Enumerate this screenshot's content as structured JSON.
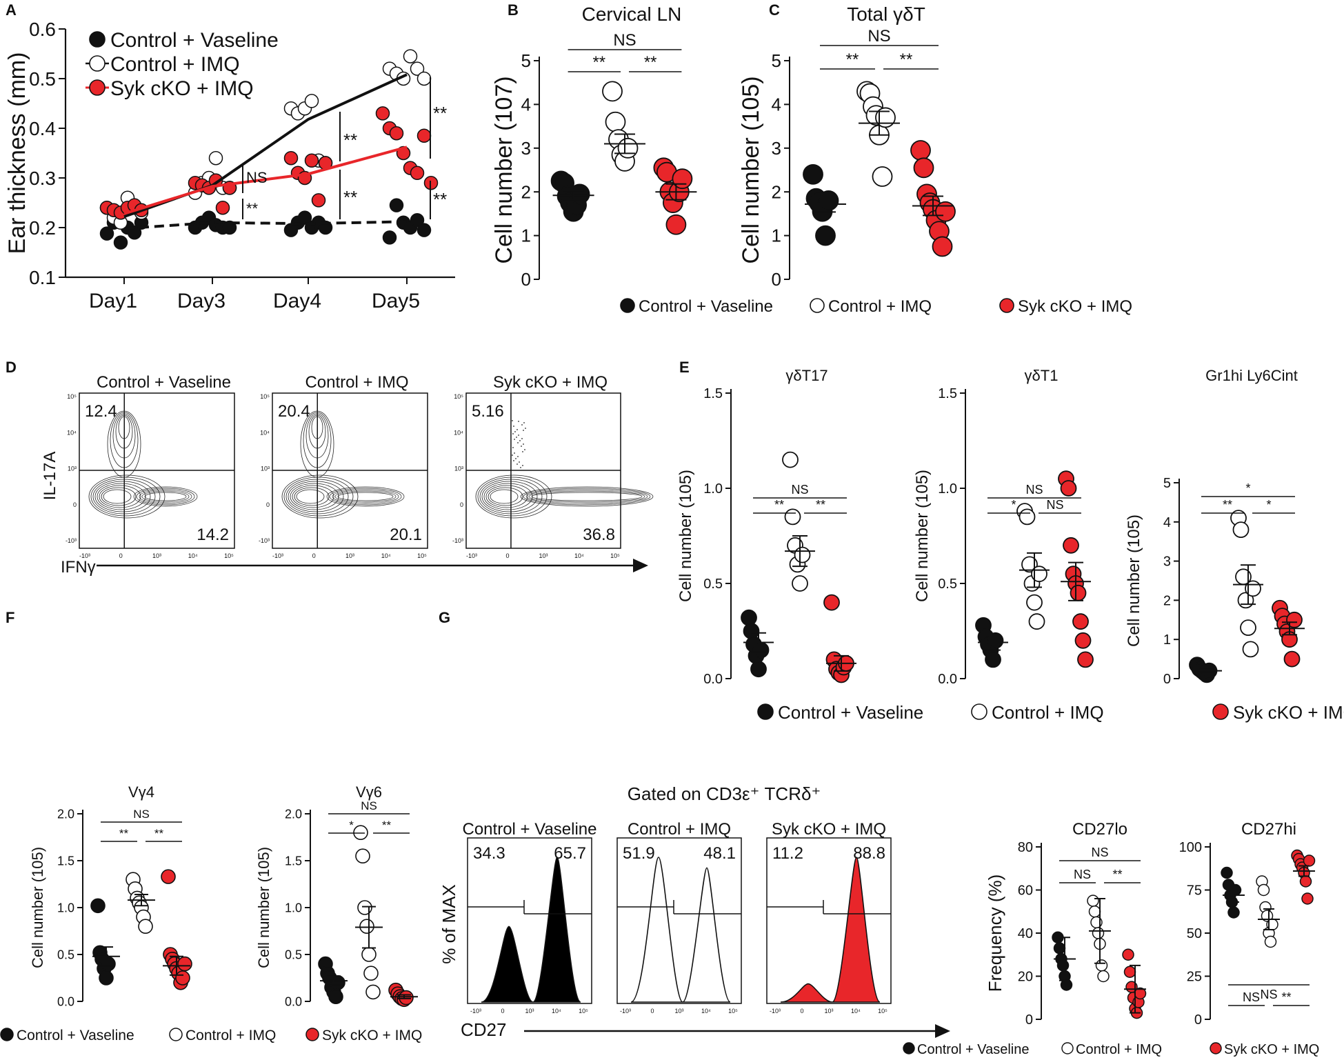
{
  "chart_data": [
    {
      "panel": "A",
      "type": "line",
      "title": "",
      "ylabel": "Ear thickness (mm)",
      "ylim": [
        0.1,
        0.6
      ],
      "yticks": [
        "0.1",
        "0.2",
        "0.3",
        "0.4",
        "0.5",
        "0.6"
      ],
      "categories": [
        "Day1",
        "Day3",
        "Day4",
        "Day5"
      ],
      "legend": [
        "Control + Vaseline",
        "Control + IMQ",
        "Syk cKO + IMQ"
      ],
      "series": [
        {
          "name": "Control + Vaseline",
          "means": [
            0.198,
            0.21,
            0.208,
            0.212
          ],
          "points": [
            [
              0.188,
              0.21,
              0.17,
              0.2,
              0.19,
              0.21
            ],
            [
              0.2,
              0.21,
              0.22,
              0.205,
              0.2,
              0.2
            ],
            [
              0.195,
              0.21,
              0.22,
              0.2,
              0.21,
              0.2
            ],
            [
              0.18,
              0.245,
              0.21,
              0.2,
              0.215,
              0.195
            ]
          ]
        },
        {
          "name": "Control + IMQ",
          "means": [
            0.222,
            0.285,
            0.418,
            0.508
          ],
          "points": [
            [
              0.24,
              0.22,
              0.21,
              0.26,
              0.24,
              0.23
            ],
            [
              0.27,
              0.29,
              0.3,
              0.34,
              0.28,
              0.28
            ],
            [
              0.44,
              0.43,
              0.44,
              0.455,
              0.335,
              0.33
            ],
            [
              0.52,
              0.51,
              0.5,
              0.545,
              0.52,
              0.5
            ]
          ]
        },
        {
          "name": "Syk cKO + IMQ",
          "means": [
            0.228,
            0.283,
            0.308,
            0.362
          ],
          "points": [
            [
              0.24,
              0.235,
              0.23,
              0.24,
              0.245,
              0.235
            ],
            [
              0.29,
              0.285,
              0.28,
              0.295,
              0.24,
              0.28
            ],
            [
              0.34,
              0.31,
              0.3,
              0.335,
              0.255,
              0.33
            ],
            [
              0.43,
              0.4,
              0.39,
              0.35,
              0.32,
              0.31,
              0.385,
              0.29
            ]
          ]
        }
      ],
      "annotations": [
        "NS",
        "**",
        "**",
        "**",
        "**",
        "**"
      ]
    },
    {
      "panel": "B",
      "type": "scatter",
      "title": "Cervical LN",
      "ylabel": "Cell number (10^7)",
      "ylim": [
        0,
        5
      ],
      "yticks": [
        "0",
        "1",
        "2",
        "3",
        "4",
        "5"
      ],
      "groups": [
        {
          "name": "Control + Vaseline",
          "values": [
            2.25,
            2.2,
            1.9,
            1.75,
            1.55,
            1.7,
            1.95
          ],
          "mean": 1.92,
          "sem": 0.1
        },
        {
          "name": "Control + IMQ",
          "values": [
            4.3,
            3.6,
            3.2,
            2.85,
            2.7,
            3.0
          ],
          "mean": 3.1,
          "sem": 0.22
        },
        {
          "name": "Syk cKO + IMQ",
          "values": [
            2.55,
            2.45,
            2.0,
            1.75,
            1.25,
            2.0,
            2.3
          ],
          "mean": 2.0,
          "sem": 0.18
        }
      ],
      "annotations": [
        "NS",
        "**",
        "**"
      ]
    },
    {
      "panel": "C",
      "type": "scatter",
      "title": "Total γδT",
      "ylabel": "Cell number (10^5)",
      "ylim": [
        0,
        5
      ],
      "yticks": [
        "0",
        "1",
        "2",
        "3",
        "4",
        "5"
      ],
      "groups": [
        {
          "name": "Control + Vaseline",
          "values": [
            2.4,
            1.85,
            1.75,
            1.55,
            1.0,
            1.8
          ],
          "mean": 1.72,
          "sem": 0.18
        },
        {
          "name": "Control + IMQ",
          "values": [
            4.3,
            4.25,
            3.95,
            3.75,
            3.3,
            2.35,
            3.7
          ],
          "mean": 3.57,
          "sem": 0.27
        },
        {
          "name": "Syk cKO + IMQ",
          "values": [
            2.95,
            2.55,
            1.95,
            1.75,
            1.6,
            1.35,
            1.1,
            0.75,
            1.55
          ],
          "mean": 1.68,
          "sem": 0.22
        }
      ],
      "annotations": [
        "NS",
        "**",
        "**"
      ]
    },
    {
      "panel": "E",
      "type": "scatter",
      "title": "γδT17",
      "ylabel": "Cell number (10^5)",
      "ylim": [
        0,
        1.5
      ],
      "yticks": [
        "0.0",
        "0.5",
        "1.0",
        "1.5"
      ],
      "groups": [
        {
          "name": "Control + Vaseline",
          "values": [
            0.32,
            0.25,
            0.18,
            0.12,
            0.05,
            0.15
          ],
          "mean": 0.19,
          "sem": 0.05
        },
        {
          "name": "Control + IMQ",
          "values": [
            1.15,
            0.85,
            0.7,
            0.6,
            0.5,
            0.65
          ],
          "mean": 0.67,
          "sem": 0.08
        },
        {
          "name": "Syk cKO + IMQ",
          "values": [
            0.4,
            0.1,
            0.05,
            0.03,
            0.02,
            0.06,
            0.08
          ],
          "mean": 0.08,
          "sem": 0.04
        }
      ],
      "annotations": [
        "NS",
        "**",
        "**"
      ]
    },
    {
      "panel": "E",
      "type": "scatter",
      "title": "γδT1",
      "ylabel": "Cell number (10^5)",
      "ylim": [
        0,
        1.5
      ],
      "yticks": [
        "0.0",
        "0.5",
        "1.0",
        "1.5"
      ],
      "groups": [
        {
          "name": "Control + Vaseline",
          "values": [
            0.28,
            0.22,
            0.18,
            0.15,
            0.1,
            0.2
          ],
          "mean": 0.19,
          "sem": 0.04
        },
        {
          "name": "Control + IMQ",
          "values": [
            0.88,
            0.85,
            0.6,
            0.5,
            0.4,
            0.3,
            0.55
          ],
          "mean": 0.57,
          "sem": 0.09
        },
        {
          "name": "Syk cKO + IMQ",
          "values": [
            1.05,
            1.0,
            0.7,
            0.55,
            0.5,
            0.45,
            0.3,
            0.2,
            0.1
          ],
          "mean": 0.51,
          "sem": 0.1
        }
      ],
      "annotations": [
        "NS",
        "*",
        "NS"
      ]
    },
    {
      "panel": "E",
      "type": "scatter",
      "title": "Gr1hi Ly6Cint",
      "ylabel": "Cell number (10^5)",
      "ylim": [
        0,
        5
      ],
      "yticks": [
        "0",
        "1",
        "2",
        "3",
        "4",
        "5"
      ],
      "groups": [
        {
          "name": "Control + Vaseline",
          "values": [
            0.35,
            0.25,
            0.2,
            0.15,
            0.1,
            0.2
          ],
          "mean": 0.2,
          "sem": 0.03
        },
        {
          "name": "Control + IMQ",
          "values": [
            4.1,
            3.8,
            2.6,
            2.0,
            1.3,
            0.75,
            2.3
          ],
          "mean": 2.4,
          "sem": 0.5
        },
        {
          "name": "Syk cKO + IMQ",
          "values": [
            1.8,
            1.6,
            1.4,
            1.2,
            1.0,
            0.5,
            1.5
          ],
          "mean": 1.28,
          "sem": 0.16
        }
      ],
      "annotations": [
        "*",
        "**",
        "*"
      ]
    },
    {
      "panel": "F",
      "type": "scatter",
      "title": "Vγ4",
      "ylabel": "Cell number (10^5)",
      "ylim": [
        0,
        2.0
      ],
      "yticks": [
        "0.0",
        "0.5",
        "1.0",
        "1.5",
        "2.0"
      ],
      "groups": [
        {
          "name": "Control + Vaseline",
          "values": [
            1.02,
            0.52,
            0.45,
            0.35,
            0.25,
            0.4
          ],
          "mean": 0.48,
          "sem": 0.1
        },
        {
          "name": "Control + IMQ",
          "values": [
            1.3,
            1.2,
            1.1,
            1.05,
            1.0,
            0.9,
            0.8
          ],
          "mean": 1.08,
          "sem": 0.06
        },
        {
          "name": "Syk cKO + IMQ",
          "values": [
            1.33,
            0.5,
            0.45,
            0.4,
            0.35,
            0.3,
            0.2,
            0.25,
            0.4
          ],
          "mean": 0.38,
          "sem": 0.1
        }
      ],
      "annotations": [
        "NS",
        "**",
        "**"
      ]
    },
    {
      "panel": "F",
      "type": "scatter",
      "title": "Vγ6",
      "ylabel": "Cell number (10^5)",
      "ylim": [
        0,
        2.0
      ],
      "yticks": [
        "0.0",
        "0.5",
        "1.0",
        "1.5",
        "2.0"
      ],
      "groups": [
        {
          "name": "Control + Vaseline",
          "values": [
            0.4,
            0.3,
            0.25,
            0.15,
            0.1,
            0.05,
            0.2
          ],
          "mean": 0.22,
          "sem": 0.05
        },
        {
          "name": "Control + IMQ",
          "values": [
            1.8,
            1.55,
            1.0,
            0.8,
            0.5,
            0.3,
            0.1
          ],
          "mean": 0.79,
          "sem": 0.22
        },
        {
          "name": "Syk cKO + IMQ",
          "values": [
            0.12,
            0.08,
            0.05,
            0.03,
            0.02,
            0.04
          ],
          "mean": 0.05,
          "sem": 0.02
        }
      ],
      "annotations": [
        "NS",
        "*",
        "**"
      ]
    },
    {
      "panel": "G",
      "type": "scatter",
      "title": "CD27lo",
      "ylabel": "Frequency (%)",
      "ylim": [
        0,
        80
      ],
      "yticks": [
        "0",
        "20",
        "40",
        "60",
        "80"
      ],
      "groups": [
        {
          "name": "Control + Vaseline",
          "values": [
            38,
            33,
            28,
            25,
            20,
            16
          ],
          "mean": 28,
          "sem": 10
        },
        {
          "name": "Control + IMQ",
          "values": [
            55,
            50,
            45,
            40,
            35,
            25,
            20
          ],
          "mean": 41,
          "sem": 15
        },
        {
          "name": "Syk cKO + IMQ",
          "values": [
            30,
            22,
            15,
            10,
            5,
            3,
            8,
            12
          ],
          "mean": 14,
          "sem": 11
        }
      ],
      "annotations": [
        "NS",
        "NS",
        "**"
      ]
    },
    {
      "panel": "G",
      "type": "scatter",
      "title": "CD27hi",
      "ylabel": "",
      "ylim": [
        0,
        100
      ],
      "yticks": [
        "0",
        "25",
        "50",
        "75",
        "100"
      ],
      "groups": [
        {
          "name": "Control + Vaseline",
          "values": [
            85,
            78,
            72,
            68,
            62,
            75
          ],
          "mean": 72,
          "sem": 4
        },
        {
          "name": "Control + IMQ",
          "values": [
            80,
            75,
            65,
            60,
            50,
            45,
            55
          ],
          "mean": 58,
          "sem": 6
        },
        {
          "name": "Syk cKO + IMQ",
          "values": [
            95,
            93,
            90,
            88,
            85,
            80,
            70,
            92
          ],
          "mean": 86,
          "sem": 3
        }
      ],
      "annotations": [
        "NS",
        "NS",
        "**"
      ]
    },
    {
      "panel": "D",
      "type": "flow-contour",
      "xlabel": "IFNγ",
      "ylabel": "IL-17A",
      "x_ticks": [
        "-10³",
        "0",
        "10³",
        "10⁴",
        "10⁵"
      ],
      "y_ticks": [
        "-10³",
        "0",
        "10³",
        "10⁴",
        "10⁵"
      ],
      "plots": [
        {
          "title": "Control + Vaseline",
          "upper_left": "12.4",
          "lower_right": "14.2"
        },
        {
          "title": "Control + IMQ",
          "upper_left": "20.4",
          "lower_right": "20.1"
        },
        {
          "title": "Syk cKO + IMQ",
          "upper_left": "5.16",
          "lower_right": "36.8"
        }
      ]
    },
    {
      "panel": "G",
      "type": "histogram",
      "heading": "Gated on CD3ε⁺ TCRδ⁺",
      "xlabel": "CD27",
      "ylabel": "% of MAX",
      "x_ticks": [
        "-10³",
        "0",
        "10³",
        "10⁴",
        "10⁵"
      ],
      "plots": [
        {
          "title": "Control + Vaseline",
          "left": "34.3",
          "right": "65.7",
          "fill": "#000000"
        },
        {
          "title": "Control + IMQ",
          "left": "51.9",
          "right": "48.1",
          "fill": "none"
        },
        {
          "title": "Syk cKO + IMQ",
          "left": "11.2",
          "right": "88.8",
          "fill": "#e8262a"
        }
      ]
    }
  ],
  "panel_letters": [
    "A",
    "B",
    "C",
    "D",
    "E",
    "F",
    "G"
  ],
  "legend_groups": [
    "Control + Vaseline",
    "Control + IMQ",
    "Syk cKO + IMQ"
  ],
  "colors": {
    "vaseline": "#111111",
    "imq": "#ffffff",
    "syk": "#e8262a"
  }
}
